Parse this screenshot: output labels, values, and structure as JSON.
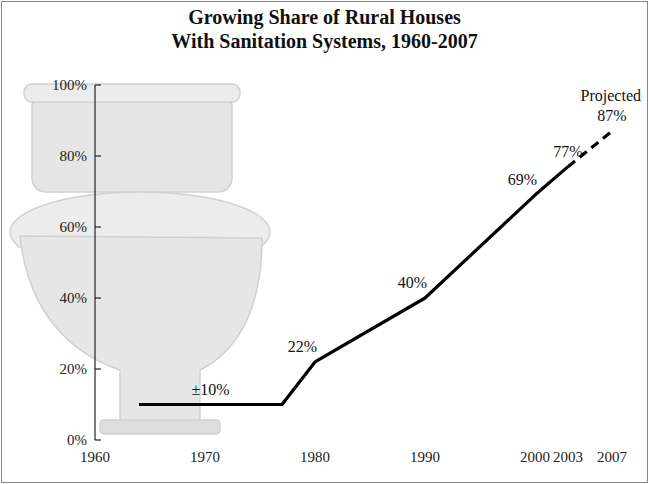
{
  "chart_data": {
    "type": "line",
    "title": "Growing Share of Rural Houses",
    "subtitle": "With Sanitation Systems, 1960-2007",
    "x": [
      1964,
      1977,
      1980,
      1990,
      2000,
      2003,
      2007
    ],
    "xlim": [
      1960,
      2007
    ],
    "xticks": [
      1960,
      1970,
      1980,
      1990,
      2000,
      2003,
      2007
    ],
    "ylim": [
      0,
      100
    ],
    "yticks": [
      {
        "value": 0,
        "label": "0%"
      },
      {
        "value": 20,
        "label": "20%"
      },
      {
        "value": 40,
        "label": "40%"
      },
      {
        "value": 60,
        "label": "60%"
      },
      {
        "value": 80,
        "label": "80%"
      },
      {
        "value": 100,
        "label": "100%"
      }
    ],
    "grid": false,
    "data_labels": true,
    "annotations": [
      "Projected"
    ],
    "series": [
      {
        "color": "#000000",
        "line_style": "solid",
        "values": [
          10,
          10,
          22,
          40,
          69,
          77,
          null
        ],
        "value_labels": [
          "±10%",
          null,
          "22%",
          "40%",
          "69%",
          "77%",
          null
        ]
      },
      {
        "color": "#000000",
        "line_style": "dashed",
        "values": [
          null,
          null,
          null,
          null,
          null,
          77,
          87
        ],
        "value_labels": [
          null,
          null,
          null,
          null,
          null,
          null,
          "87%"
        ]
      }
    ]
  }
}
